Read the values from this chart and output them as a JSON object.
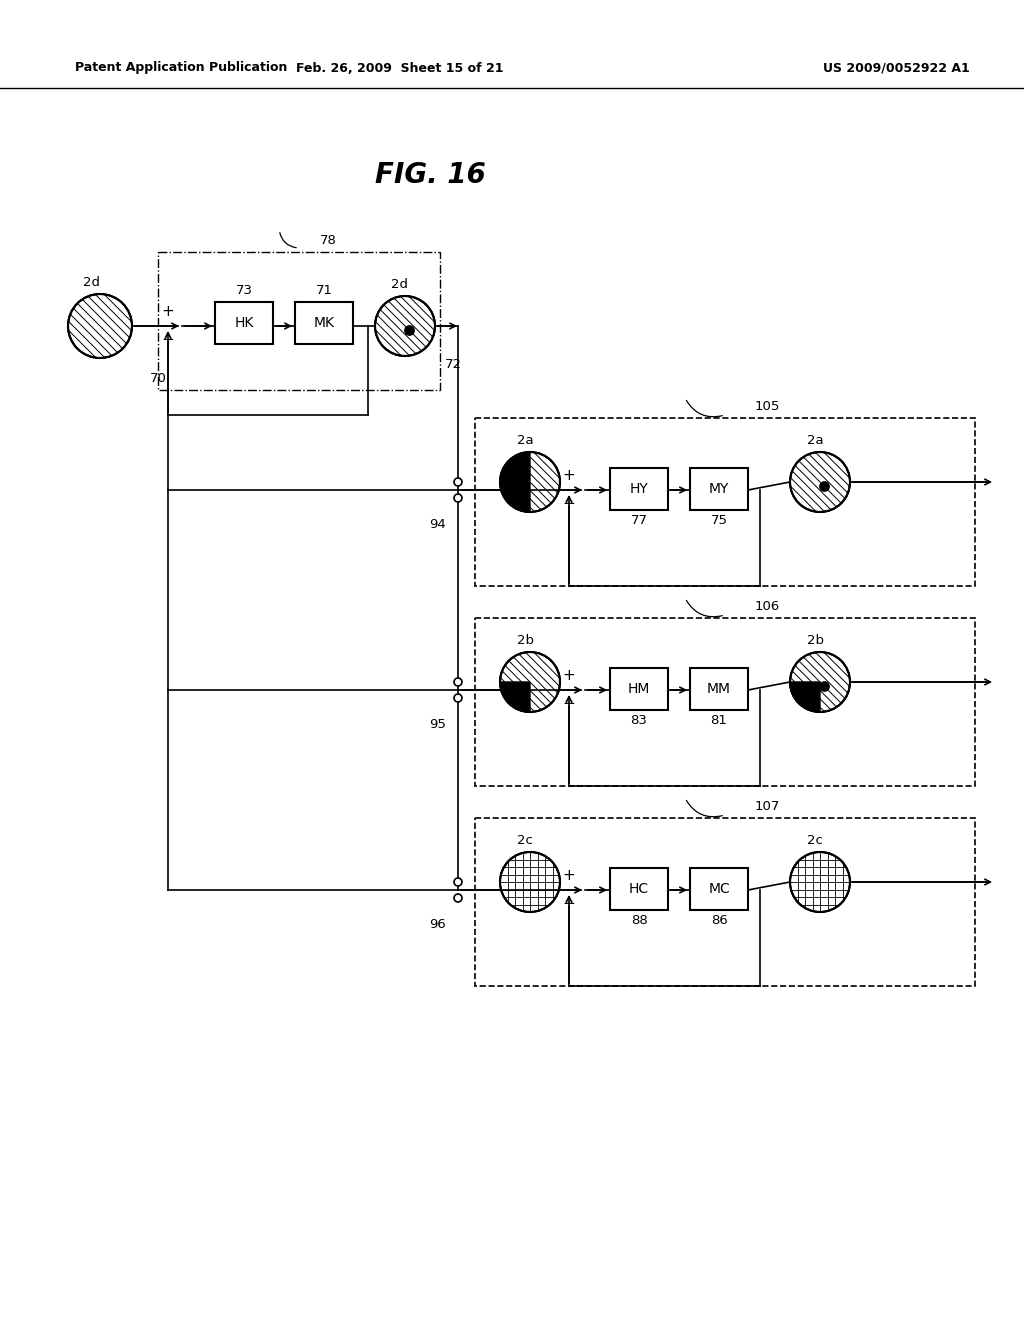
{
  "title": "FIG. 16",
  "header_left": "Patent Application Publication",
  "header_mid": "Feb. 26, 2009  Sheet 15 of 21",
  "header_right": "US 2009/0052922 A1",
  "background": "#ffffff",
  "fig_width": 10.24,
  "fig_height": 13.2,
  "dpi": 100
}
